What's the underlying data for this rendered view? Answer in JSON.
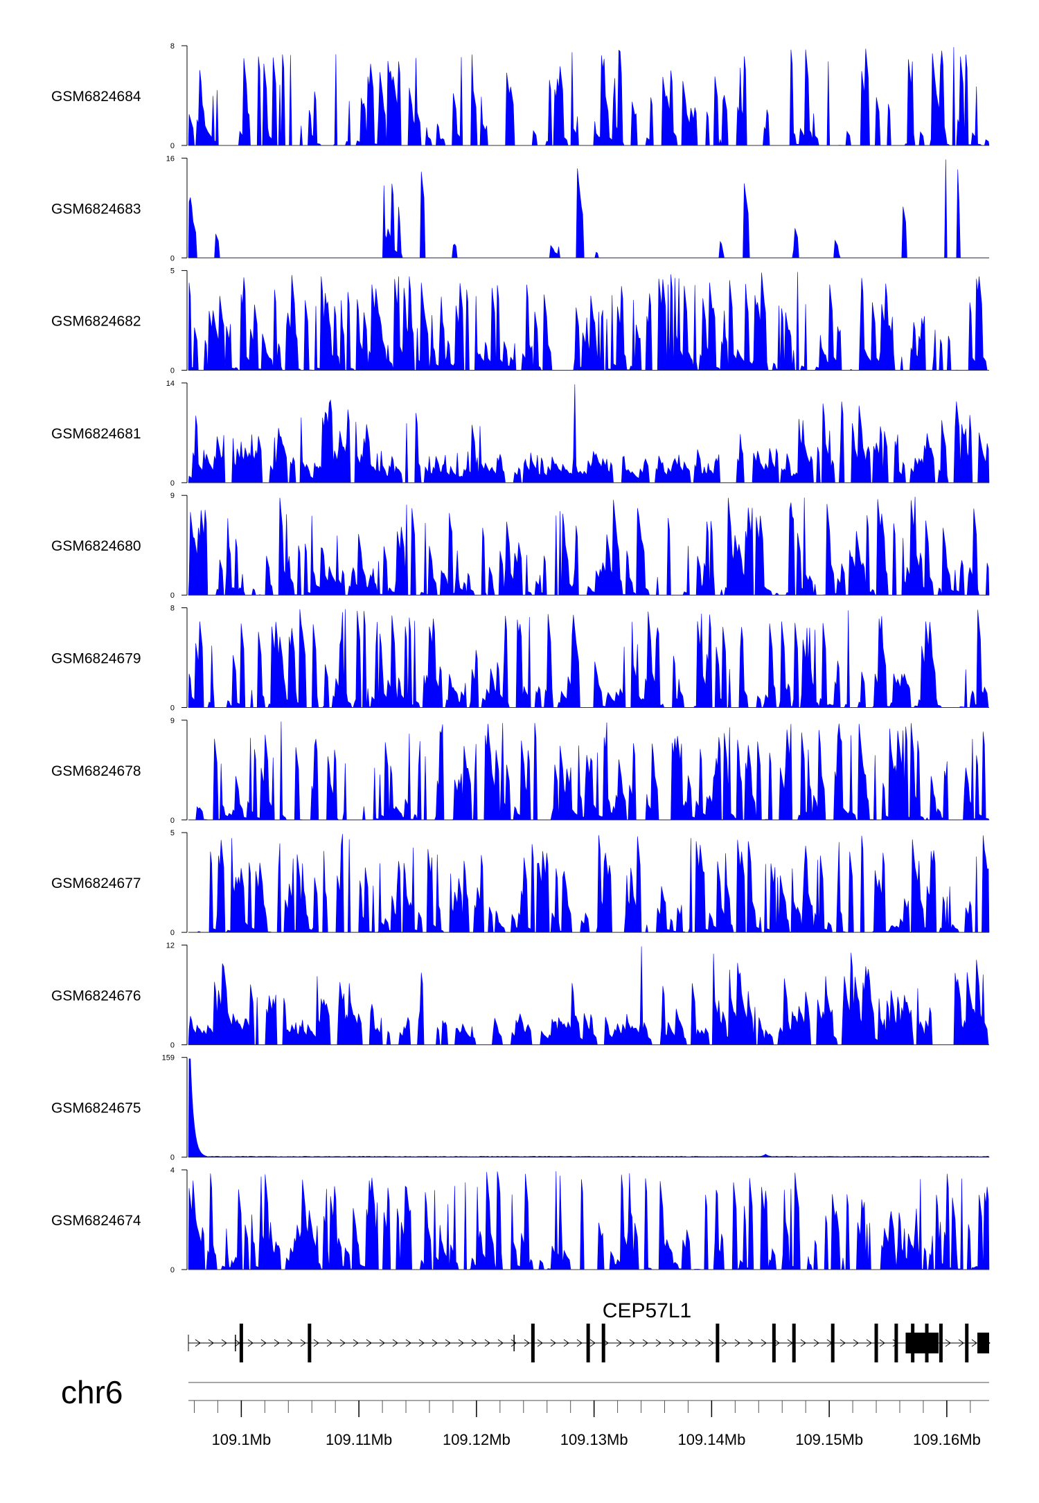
{
  "chart_data": {
    "type": "area",
    "color": "#0000ff",
    "x_unit": "Mb",
    "xlim": [
      109.0955,
      109.1636
    ],
    "tracks": [
      {
        "name": "GSM6824684",
        "ymax_label": "8",
        "ymin_label": "0",
        "ylim": [
          0,
          8
        ],
        "style": "spiky-sparse"
      },
      {
        "name": "GSM6824683",
        "ymax_label": "16",
        "ymin_label": "0",
        "ylim": [
          0,
          16
        ],
        "style": "sparse-triangles"
      },
      {
        "name": "GSM6824682",
        "ymax_label": "5",
        "ymin_label": "0",
        "ylim": [
          0,
          5
        ],
        "style": "dense-spiky"
      },
      {
        "name": "GSM6824681",
        "ymax_label": "14",
        "ymin_label": "0",
        "ylim": [
          0,
          14
        ],
        "style": "blocky-regions"
      },
      {
        "name": "GSM6824680",
        "ymax_label": "9",
        "ymin_label": "0",
        "ylim": [
          0,
          9
        ],
        "style": "dense-spiky"
      },
      {
        "name": "GSM6824679",
        "ymax_label": "8",
        "ymin_label": "0",
        "ylim": [
          0,
          8
        ],
        "style": "dense-spiky"
      },
      {
        "name": "GSM6824678",
        "ymax_label": "9",
        "ymin_label": "0",
        "ylim": [
          0,
          9
        ],
        "style": "dense-spiky"
      },
      {
        "name": "GSM6824677",
        "ymax_label": "5",
        "ymin_label": "0",
        "ylim": [
          0,
          5
        ],
        "style": "dense-spiky"
      },
      {
        "name": "GSM6824676",
        "ymax_label": "12",
        "ymin_label": "0",
        "ylim": [
          0,
          12
        ],
        "style": "blocky-regions"
      },
      {
        "name": "GSM6824675",
        "ymax_label": "159",
        "ymin_label": "0",
        "ylim": [
          0,
          159
        ],
        "style": "single-peak",
        "peak": {
          "x": 109.096,
          "y": 159
        }
      },
      {
        "name": "GSM6824674",
        "ymax_label": "4",
        "ymin_label": "0",
        "ylim": [
          0,
          4
        ],
        "style": "dense-spiky"
      }
    ],
    "gene": {
      "name": "CEP57L1",
      "exons_mb": [
        109.1,
        109.1058,
        109.1248,
        109.1295,
        109.1308,
        109.1405,
        109.1453,
        109.147,
        109.1503,
        109.154,
        109.1557,
        109.1571,
        109.1583,
        109.1595,
        109.1617
      ],
      "utr_blocks_mb": [
        [
          109.1565,
          109.1593
        ],
        [
          109.1626,
          109.1636
        ]
      ]
    },
    "chromosome": "chr6",
    "x_ticks": [
      "109.1Mb",
      "109.11Mb",
      "109.12Mb",
      "109.13Mb",
      "109.14Mb",
      "109.15Mb",
      "109.16Mb"
    ],
    "x_tick_values": [
      109.1,
      109.11,
      109.12,
      109.13,
      109.14,
      109.15,
      109.16
    ],
    "minor_tick_step": 0.002
  }
}
